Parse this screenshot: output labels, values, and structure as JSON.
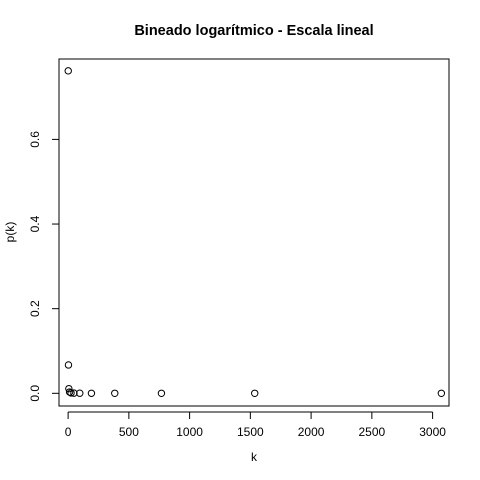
{
  "chart_data": {
    "type": "scatter",
    "title": "Bineado logarítmico - Escala lineal",
    "xlabel": "k",
    "ylabel": "p(k)",
    "xlim": [
      -75,
      3135
    ],
    "ylim": [
      -0.03,
      0.79
    ],
    "x_ticks": [
      0,
      500,
      1000,
      1500,
      2000,
      2500,
      3000
    ],
    "x_tick_labels": [
      "0",
      "500",
      "1000",
      "1500",
      "2000",
      "2500",
      "3000"
    ],
    "y_ticks": [
      0.0,
      0.2,
      0.4,
      0.6
    ],
    "y_tick_labels": [
      "0.0",
      "0.2",
      "0.4",
      "0.6"
    ],
    "grid": false,
    "marker": "open-circle",
    "color": "#000000",
    "x": [
      1,
      3,
      6,
      12,
      24,
      48,
      96,
      192,
      384,
      768,
      1536,
      3072
    ],
    "y": [
      0.762,
      0.067,
      0.011,
      0.003,
      0.001,
      0.0004,
      0.0002,
      0.0001,
      5e-05,
      2e-05,
      1e-05,
      3e-06
    ]
  }
}
